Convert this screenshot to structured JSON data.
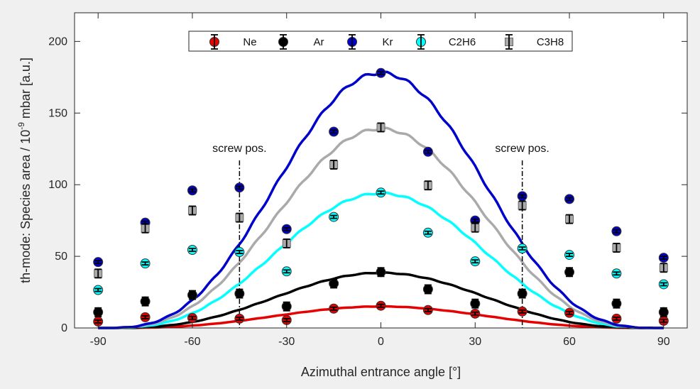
{
  "chart_data": {
    "type": "scatter",
    "xlabel": "Azimuthal entrance angle [°]",
    "ylabel_main": "th-mode: Species area / 10",
    "ylabel_sup": "-9",
    "ylabel_tail": " mbar [a.u.]",
    "xlim": [
      -97.5,
      97.5
    ],
    "ylim": [
      0,
      220
    ],
    "xticks": [
      -90,
      -60,
      -30,
      0,
      30,
      60,
      90
    ],
    "yticks": [
      0,
      50,
      100,
      150,
      200
    ],
    "grid": false,
    "legend_position": "top-center",
    "annotations": [
      {
        "text": "screw pos.",
        "x": -45
      },
      {
        "text": "screw pos.",
        "x": 45
      }
    ],
    "series": [
      {
        "name": "Ne",
        "color": "#e60000",
        "marker": "circle",
        "x": [
          -90,
          -75,
          -60,
          -45,
          -30,
          -15,
          0,
          15,
          30,
          45,
          60,
          75,
          90
        ],
        "y": [
          4.5,
          7.5,
          7,
          6.5,
          5.5,
          13.5,
          15.5,
          12.5,
          10,
          11.5,
          10.5,
          6.5,
          5
        ],
        "err": [
          1,
          1,
          1,
          1,
          1,
          1,
          1,
          1,
          1,
          1,
          1,
          1,
          1
        ]
      },
      {
        "name": "Ar",
        "color": "#000000",
        "marker": "circle",
        "x": [
          -90,
          -75,
          -60,
          -45,
          -30,
          -15,
          0,
          15,
          30,
          45,
          60,
          75,
          90
        ],
        "y": [
          11,
          18.5,
          23,
          24,
          15,
          31,
          39,
          27,
          17,
          24,
          39,
          17,
          11
        ],
        "err": [
          3,
          3,
          3,
          3,
          3,
          3,
          3,
          3,
          3,
          3,
          3,
          3,
          3
        ]
      },
      {
        "name": "Kr",
        "color": "#0000cc",
        "marker": "circle",
        "x": [
          -90,
          -75,
          -60,
          -45,
          -30,
          -15,
          0,
          15,
          30,
          45,
          60,
          75,
          90
        ],
        "y": [
          46,
          73.5,
          96,
          98,
          69,
          137,
          178,
          123,
          75,
          92,
          90,
          67.5,
          49
        ],
        "err": [
          1,
          1,
          1,
          1,
          1,
          1,
          1,
          1,
          1,
          1,
          1,
          1,
          1
        ]
      },
      {
        "name": "C2H6",
        "color": "#00ffff",
        "marker": "circle",
        "x": [
          -90,
          -75,
          -60,
          -45,
          -30,
          -15,
          0,
          15,
          30,
          45,
          60,
          75,
          90
        ],
        "y": [
          26.5,
          45,
          54.5,
          53,
          39.5,
          77.5,
          94.5,
          66.5,
          46.5,
          55.5,
          51,
          38,
          30.5
        ],
        "err": [
          1,
          1,
          1,
          1,
          1,
          1,
          1,
          1,
          1,
          1,
          1,
          1,
          1
        ]
      },
      {
        "name": "C3H8",
        "color": "#aaaaaa",
        "marker": "square",
        "x": [
          -90,
          -75,
          -60,
          -45,
          -30,
          -15,
          0,
          15,
          30,
          45,
          60,
          75,
          90
        ],
        "y": [
          38,
          69.5,
          82,
          77,
          59,
          114,
          140,
          99.5,
          70,
          85.5,
          76,
          56,
          42
        ],
        "err": [
          3,
          3,
          3,
          3,
          3,
          3,
          3,
          3,
          3,
          3,
          3,
          3,
          3
        ]
      }
    ],
    "model_curves": [
      {
        "series": "Ne",
        "color": "#e60000",
        "amplitude": 15
      },
      {
        "series": "Ar",
        "color": "#000000",
        "amplitude": 38.5
      },
      {
        "series": "C2H6",
        "color": "#00ffff",
        "amplitude": 94
      },
      {
        "series": "C3H8",
        "color": "#aaaaaa",
        "amplitude": 139
      },
      {
        "series": "Kr",
        "color": "#0000cc",
        "amplitude": 178
      }
    ]
  }
}
